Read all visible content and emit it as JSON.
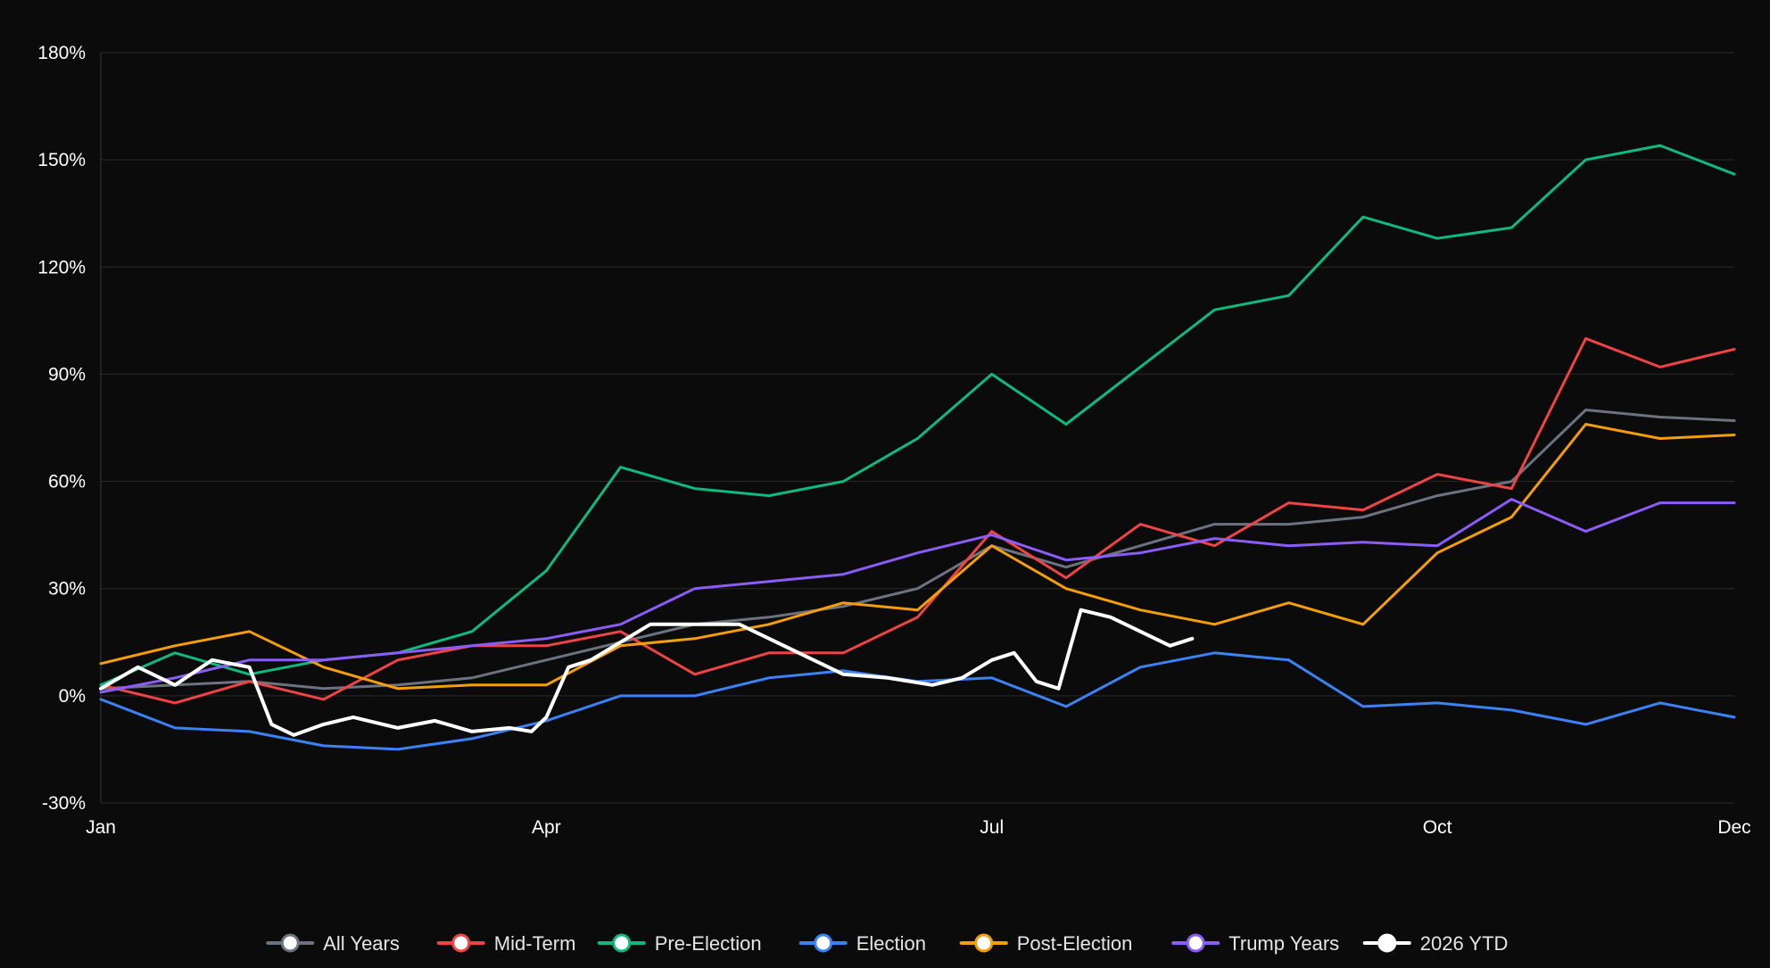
{
  "chart_data": {
    "type": "line",
    "title": "",
    "xlabel": "",
    "ylabel": "",
    "x_ticks": [
      "Jan",
      "Apr",
      "Jul",
      "Oct",
      "Dec"
    ],
    "x_tick_positions": [
      0,
      3,
      6,
      9,
      11
    ],
    "x_range": [
      0,
      11
    ],
    "y_ticks": [
      "180%",
      "150%",
      "120%",
      "90%",
      "60%",
      "30%",
      "0%",
      "-30%"
    ],
    "y_tick_values": [
      180,
      150,
      120,
      90,
      60,
      30,
      0,
      -30
    ],
    "ylim": [
      -30,
      180
    ],
    "grid": "horizontal",
    "legend_position": "bottom",
    "colors": {
      "background": "#0b0b0b",
      "grid": "#2a2a2a",
      "axis": "#3a3a3a"
    },
    "series": [
      {
        "name": "All Years",
        "color": "#6b7280",
        "width": 3,
        "x": [
          0,
          0.5,
          1,
          1.5,
          2,
          2.5,
          3,
          3.5,
          4,
          4.5,
          5,
          5.5,
          6,
          6.5,
          7,
          7.5,
          8,
          8.5,
          9,
          9.5,
          10,
          10.5,
          11
        ],
        "values": [
          2,
          3,
          4,
          2,
          3,
          5,
          10,
          15,
          20,
          22,
          25,
          30,
          42,
          36,
          42,
          48,
          48,
          50,
          56,
          60,
          80,
          78,
          77
        ]
      },
      {
        "name": "Mid-Term",
        "color": "#ef4444",
        "width": 3,
        "x": [
          0,
          0.5,
          1,
          1.5,
          2,
          2.5,
          3,
          3.5,
          4,
          4.5,
          5,
          5.5,
          6,
          6.5,
          7,
          7.5,
          8,
          8.5,
          9,
          9.5,
          10,
          10.5,
          11
        ],
        "values": [
          3,
          -2,
          4,
          -1,
          10,
          14,
          14,
          18,
          6,
          12,
          12,
          22,
          46,
          33,
          48,
          42,
          54,
          52,
          62,
          58,
          100,
          92,
          97
        ]
      },
      {
        "name": "Pre-Election",
        "color": "#10b981",
        "width": 3,
        "x": [
          0,
          0.5,
          1,
          1.5,
          2,
          2.5,
          3,
          3.5,
          4,
          4.5,
          5,
          5.5,
          6,
          6.5,
          7,
          7.5,
          8,
          8.5,
          9,
          9.5,
          10,
          10.5,
          11
        ],
        "values": [
          3,
          12,
          6,
          10,
          12,
          18,
          35,
          64,
          58,
          56,
          60,
          72,
          90,
          76,
          92,
          108,
          112,
          134,
          128,
          131,
          150,
          154,
          146
        ]
      },
      {
        "name": "Election",
        "color": "#3b82f6",
        "width": 3,
        "x": [
          0,
          0.5,
          1,
          1.5,
          2,
          2.5,
          3,
          3.5,
          4,
          4.5,
          5,
          5.5,
          6,
          6.5,
          7,
          7.5,
          8,
          8.5,
          9,
          9.5,
          10,
          10.5,
          11
        ],
        "values": [
          -1,
          -9,
          -10,
          -14,
          -15,
          -12,
          -7,
          0,
          0,
          5,
          7,
          4,
          5,
          -3,
          8,
          12,
          10,
          -3,
          -2,
          -4,
          -8,
          -2,
          -6
        ]
      },
      {
        "name": "Post-Election",
        "color": "#f59e0b",
        "width": 3,
        "x": [
          0,
          0.5,
          1,
          1.5,
          2,
          2.5,
          3,
          3.5,
          4,
          4.5,
          5,
          5.5,
          6,
          6.5,
          7,
          7.5,
          8,
          8.5,
          9,
          9.5,
          10,
          10.5,
          11
        ],
        "values": [
          9,
          14,
          18,
          8,
          2,
          3,
          3,
          14,
          16,
          20,
          26,
          24,
          42,
          30,
          24,
          20,
          26,
          20,
          40,
          50,
          76,
          72,
          73
        ]
      },
      {
        "name": "Trump Years",
        "color": "#8b5cf6",
        "width": 3,
        "x": [
          0,
          0.5,
          1,
          1.5,
          2,
          2.5,
          3,
          3.5,
          4,
          4.5,
          5,
          5.5,
          6,
          6.5,
          7,
          7.5,
          8,
          8.5,
          9,
          9.5,
          10,
          10.5,
          11
        ],
        "values": [
          1,
          5,
          10,
          10,
          12,
          14,
          16,
          20,
          30,
          32,
          34,
          40,
          45,
          38,
          40,
          44,
          42,
          43,
          42,
          55,
          46,
          54,
          54
        ]
      },
      {
        "name": "2026 YTD",
        "color": "#ffffff",
        "width": 4,
        "x": [
          0,
          0.25,
          0.5,
          0.75,
          1,
          1.15,
          1.3,
          1.5,
          1.7,
          2,
          2.25,
          2.5,
          2.75,
          2.9,
          3,
          3.15,
          3.3,
          3.5,
          3.7,
          4,
          4.3,
          4.6,
          4.8,
          5,
          5.3,
          5.6,
          5.8,
          6,
          6.15,
          6.3,
          6.45,
          6.6,
          6.8,
          7,
          7.2,
          7.35
        ],
        "values": [
          2,
          8,
          3,
          10,
          8,
          -8,
          -11,
          -8,
          -6,
          -9,
          -7,
          -10,
          -9,
          -10,
          -6,
          8,
          10,
          15,
          20,
          20,
          20,
          14,
          10,
          6,
          5,
          3,
          5,
          10,
          12,
          4,
          2,
          24,
          22,
          18,
          14,
          16
        ]
      }
    ]
  }
}
